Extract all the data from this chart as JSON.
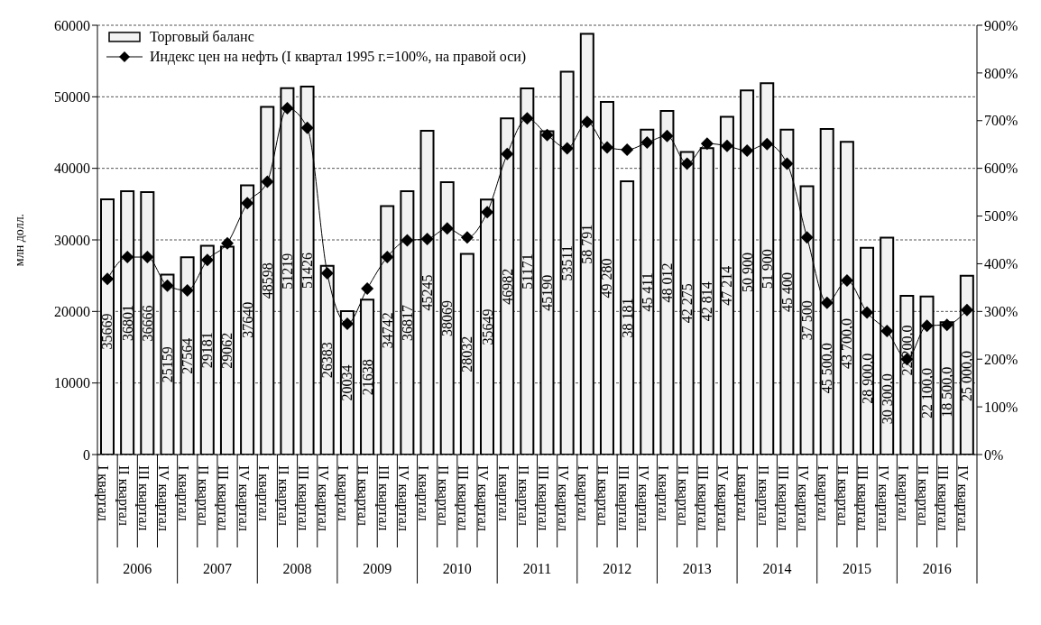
{
  "chart_data": {
    "type": "bar",
    "ylabel": "млн долл.",
    "categories": [
      "I квартал",
      "II квартал",
      "III квартал",
      "IV квартал",
      "I квартал",
      "II квартал",
      "III квартал",
      "IV квартал",
      "I квартал",
      "II квартал",
      "III квартал",
      "IV квартал",
      "I квартал",
      "II квартал",
      "III квартал",
      "IV квартал",
      "I квартал",
      "II квартал",
      "III квартал",
      "IV квартал",
      "I квартал",
      "II квартал",
      "III квартал",
      "IV квартал",
      "I квартал",
      "II квартал",
      "III квартал",
      "IV квартал",
      "I квартал",
      "II квартал",
      "III квартал",
      "IV квартал",
      "I квартал",
      "II квартал",
      "III квартал",
      "IV квартал",
      "I квартал",
      "II квартал",
      "III квартал",
      "IV квартал",
      "I квартал",
      "II квартал",
      "III квартал",
      "IV квартал"
    ],
    "annotations": [
      "2006",
      "2007",
      "2008",
      "2009",
      "2010",
      "2011",
      "2012",
      "2013",
      "2014",
      "2015",
      "2016"
    ],
    "series": [
      {
        "name": "Торговый баланс",
        "color": "#f2f2f2",
        "values": [
          35669,
          36801,
          36666,
          25159,
          27564,
          29181,
          29062,
          37640,
          48598,
          51219,
          51426,
          26383,
          20034,
          21638,
          34742,
          36817,
          45245,
          38069,
          28032,
          35649,
          46982,
          51171,
          45190,
          53511,
          58791,
          49280,
          38181,
          45411,
          48012,
          42275,
          42814,
          47214,
          50900,
          51900,
          45400,
          37500,
          45500,
          43700,
          28900,
          30300,
          22200,
          22100,
          18500,
          25000
        ],
        "value_labels": [
          "35669",
          "36801",
          "36666",
          "25159",
          "27564",
          "29181",
          "29062",
          "37640",
          "48598",
          "51219",
          "51426",
          "26383",
          "20034",
          "21638",
          "34742",
          "36817",
          "45245",
          "38069",
          "28032",
          "35649",
          "46982",
          "51171",
          "45190",
          "53511",
          "58 791",
          "49 280",
          "38 181",
          "45 411",
          "48 012",
          "42 275",
          "42 814",
          "47 214",
          "50 900",
          "51 900",
          "45 400",
          "37 500",
          "45 500,0",
          "43 700,0",
          "28 900,0",
          "30 300,0",
          "22 200,0",
          "22 100,0",
          "18 500,0",
          "25 000,0"
        ]
      },
      {
        "name": "Индекс цен на нефть (I квартал 1995 г.=100%, на правой оси)",
        "type": "line",
        "axis": "y2",
        "color": "#000000",
        "values": [
          368,
          414,
          414,
          354,
          344,
          408,
          443,
          527,
          572,
          726,
          685,
          380,
          274,
          348,
          414,
          449,
          452,
          474,
          455,
          508,
          630,
          705,
          670,
          642,
          697,
          644,
          639,
          654,
          668,
          610,
          652,
          647,
          637,
          651,
          610,
          455,
          318,
          365,
          298,
          259,
          200,
          270,
          272,
          303
        ]
      }
    ],
    "ylim": [
      0,
      60000
    ],
    "yticks": [
      0,
      10000,
      20000,
      30000,
      40000,
      50000,
      60000
    ],
    "y2lim": [
      0,
      900
    ],
    "y2ticks": [
      {
        "value": 0,
        "label": "0%"
      },
      {
        "value": 100,
        "label": "100%"
      },
      {
        "value": 200,
        "label": "200%"
      },
      {
        "value": 300,
        "label": "300%"
      },
      {
        "value": 400,
        "label": "400%"
      },
      {
        "value": 500,
        "label": "500%"
      },
      {
        "value": 600,
        "label": "600%"
      },
      {
        "value": 700,
        "label": "700%"
      },
      {
        "value": 800,
        "label": "800%"
      },
      {
        "value": 900,
        "label": "900%"
      }
    ],
    "grid": "y",
    "legend": "top left",
    "marker": "diamond",
    "line_style": "solid"
  }
}
